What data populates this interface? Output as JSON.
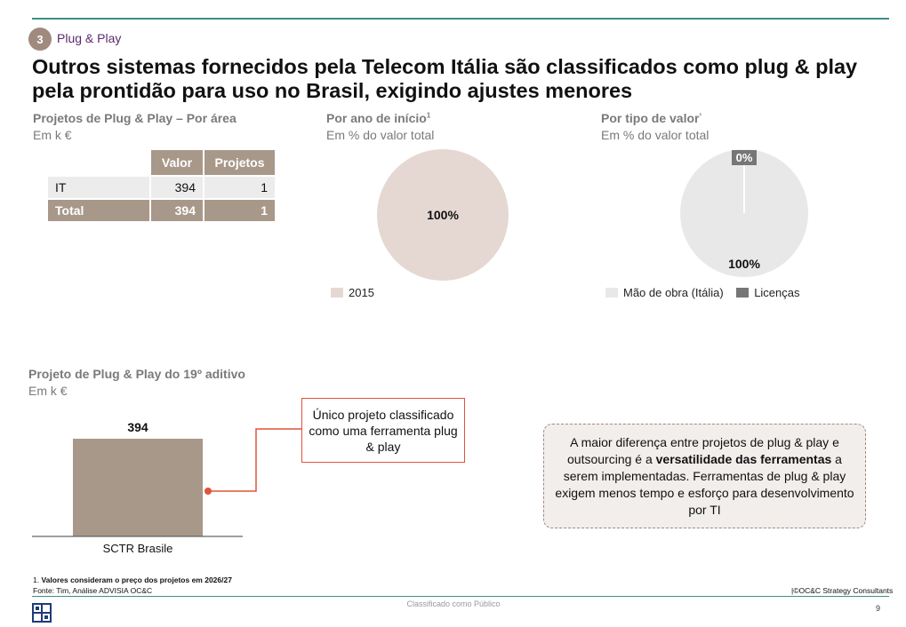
{
  "header": {
    "section_number": "3",
    "section_label": "Plug & Play",
    "headline": "Outros sistemas fornecidos pela Telecom Itália são classificados como plug & play pela prontidão para uso no Brasil, exigindo ajustes menores"
  },
  "table_panel": {
    "title": "Projetos de Plug & Play – Por área",
    "unit": "Em k €",
    "columns": [
      "Valor",
      "Projetos"
    ],
    "rows": [
      {
        "label": "IT",
        "valor": "394",
        "projetos": "1"
      },
      {
        "label": "Total",
        "valor": "394",
        "projetos": "1"
      }
    ]
  },
  "year_panel": {
    "title": "Por ano de início",
    "title_sup": "1",
    "unit": "Em % do valor total"
  },
  "type_panel": {
    "title": "Por tipo de valor",
    "title_sup": "¹",
    "unit": "Em % do valor total"
  },
  "bar_panel": {
    "title": "Projeto de Plug & Play do 19º aditivo",
    "unit": "Em k €"
  },
  "callout": {
    "text": "Único projeto classificado como uma ferramenta plug & play"
  },
  "note": {
    "text_before": "A maior diferença entre projetos de plug & play e outsourcing é a ",
    "text_bold": "versatilidade das ferramentas",
    "text_after": " a serem implementadas. Ferramentas de plug & play exigem menos tempo e esforço para desenvolvimento por TI"
  },
  "footer": {
    "footnote_number": "1.",
    "footnote_text": "Valores consideram o preço dos projetos em 2026/27",
    "source": "Fonte: Tim, Análise ADVISIA OC&C",
    "copyright": "|©OC&C Strategy Consultants",
    "classification": "Classificado como Público",
    "page_number": "9"
  },
  "colors": {
    "taupe": "#a8988a",
    "pie_year": "#e5d8d3",
    "pie_labor": "#e8e8e8",
    "pie_license": "#767676",
    "accent_red": "#e0533c",
    "teal": "#3b8f87",
    "badge": "#a08a7e"
  },
  "chart_data": [
    {
      "type": "pie",
      "title": "Por ano de início",
      "slices": [
        {
          "label": "2015",
          "value": 100,
          "display": "100%"
        }
      ]
    },
    {
      "type": "pie",
      "title": "Por tipo de valor",
      "slices": [
        {
          "label": "Mão de obra (Itália)",
          "value": 100,
          "display": "100%"
        },
        {
          "label": "Licenças",
          "value": 0,
          "display": "0%"
        }
      ]
    },
    {
      "type": "bar",
      "title": "Projeto de Plug & Play do 19º aditivo",
      "categories": [
        "SCTR Brasile"
      ],
      "values": [
        394
      ],
      "data_labels": [
        "394"
      ],
      "ylim": [
        0,
        480
      ]
    }
  ]
}
